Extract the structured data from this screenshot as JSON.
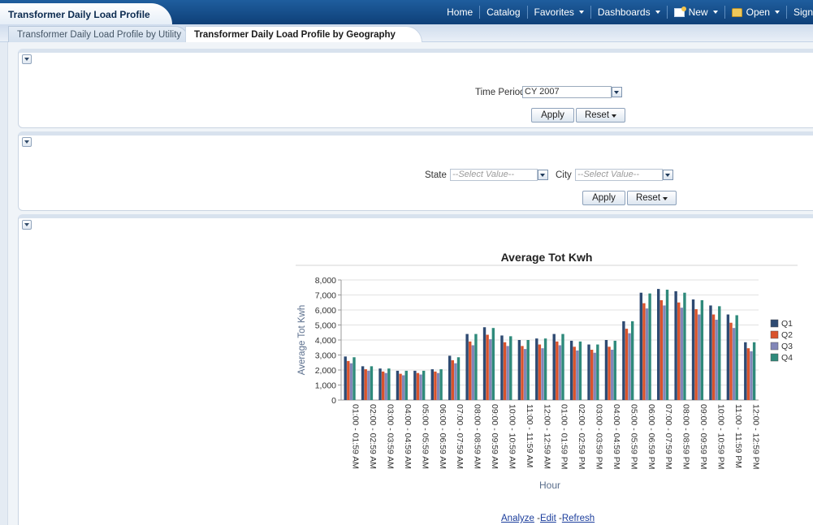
{
  "header": {
    "app_title": "Transformer Daily Load Profile",
    "nav": [
      {
        "label": "Home"
      },
      {
        "label": "Catalog"
      },
      {
        "label": "Favorites"
      },
      {
        "label": "Dashboards"
      },
      {
        "label": "New"
      },
      {
        "label": "Open"
      },
      {
        "label": "Sign"
      }
    ]
  },
  "tabs": [
    {
      "label": "Transformer Daily Load Profile by Utility"
    },
    {
      "label": "Transformer Daily Load Profile by Geography"
    }
  ],
  "prompt1": {
    "time_period_label": "Time Period",
    "time_period_value": "CY 2007",
    "apply_label": "Apply",
    "reset_label": "Reset"
  },
  "prompt2": {
    "state_label": "State",
    "state_value": "--Select Value--",
    "city_label": "City",
    "city_value": "--Select Value--",
    "apply_label": "Apply",
    "reset_label": "Reset"
  },
  "footer_links": {
    "analyze": "Analyze",
    "edit": "Edit",
    "refresh": "Refresh",
    "sep": "-"
  },
  "colors": {
    "q1": "#2e4a72",
    "q2": "#d9532c",
    "q3": "#8286b8",
    "q4": "#2f8a7b"
  },
  "chart_data": {
    "type": "bar",
    "title": "Average Tot Kwh",
    "xlabel": "Hour",
    "ylabel": "Average Tot Kwh",
    "ylim": [
      0,
      8000
    ],
    "yticks": [
      "0",
      "1,000",
      "2,000",
      "3,000",
      "4,000",
      "5,000",
      "6,000",
      "7,000",
      "8,000"
    ],
    "legend_position": "right",
    "categories": [
      "01:00 - 01:59 AM",
      "02:00 - 02:59 AM",
      "03:00 - 03:59 AM",
      "04:00 - 04:59 AM",
      "05:00 - 05:59 AM",
      "06:00 - 06:59 AM",
      "07:00 - 07:59 AM",
      "08:00 - 08:59 AM",
      "09:00 - 09:59 AM",
      "10:00 - 10:59 AM",
      "11:00 - 11:59 AM",
      "12:00 - 12:59 AM",
      "01:00 - 01:59 PM",
      "02:00 - 02:59 PM",
      "03:00 - 03:59 PM",
      "04:00 - 04:59 PM",
      "05:00 - 05:59 PM",
      "06:00 - 06:59 PM",
      "07:00 - 07:59 PM",
      "08:00 - 08:59 PM",
      "09:00 - 09:59 PM",
      "10:00 - 10:59 PM",
      "11:00 - 11:59 PM",
      "12:00 - 12:59 PM"
    ],
    "series": [
      {
        "name": "Q1",
        "values": [
          2900,
          2250,
          2100,
          1950,
          1950,
          2050,
          2950,
          4400,
          4850,
          4300,
          4000,
          4100,
          4400,
          3950,
          3700,
          4000,
          5250,
          7150,
          7400,
          7250,
          6700,
          6300,
          5700,
          3850
        ]
      },
      {
        "name": "Q2",
        "values": [
          2600,
          2050,
          1900,
          1750,
          1800,
          1900,
          2650,
          3900,
          4350,
          3850,
          3600,
          3700,
          3900,
          3550,
          3350,
          3550,
          4750,
          6450,
          6650,
          6500,
          6050,
          5700,
          5150,
          3450
        ]
      },
      {
        "name": "Q3",
        "values": [
          2450,
          1950,
          1800,
          1650,
          1700,
          1800,
          2450,
          3650,
          4050,
          3600,
          3400,
          3450,
          3650,
          3300,
          3150,
          3350,
          4450,
          6100,
          6300,
          6150,
          5700,
          5350,
          4800,
          3250
        ]
      },
      {
        "name": "Q4",
        "values": [
          2850,
          2250,
          2100,
          1950,
          1950,
          2050,
          2850,
          4400,
          4800,
          4250,
          4000,
          4100,
          4400,
          3900,
          3700,
          3950,
          5250,
          7100,
          7350,
          7150,
          6650,
          6250,
          5650,
          3850
        ]
      }
    ]
  }
}
